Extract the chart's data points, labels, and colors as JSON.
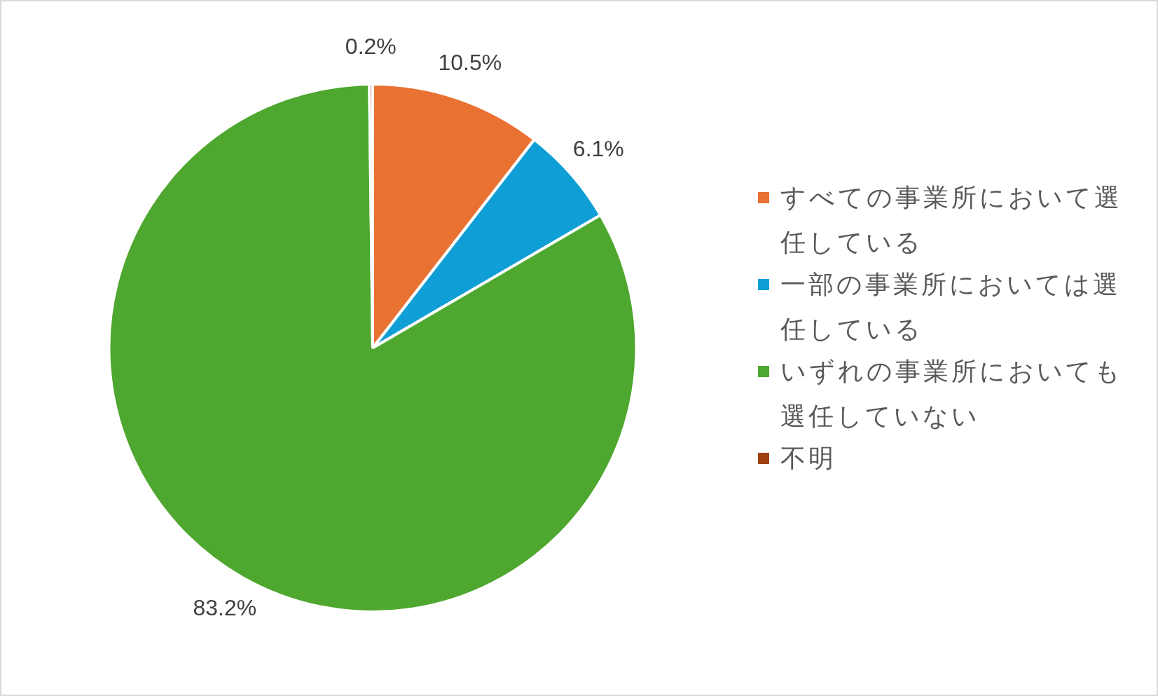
{
  "chart_data": {
    "type": "pie",
    "categories": [
      "すべての事業所において選任している",
      "一部の事業所においては選任している",
      "いずれの事業所においても選任していない",
      "不明"
    ],
    "values": [
      10.5,
      6.1,
      83.2,
      0.2
    ],
    "colors": [
      "#e97132",
      "#0f9ed5",
      "#4ea72e",
      "#a0400f"
    ],
    "value_labels": [
      "10.5%",
      "6.1%",
      "83.2%",
      "0.2%"
    ],
    "legend": "right"
  }
}
